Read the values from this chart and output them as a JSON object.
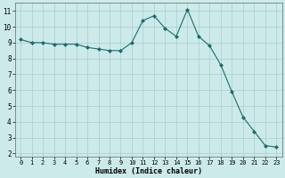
{
  "x": [
    0,
    1,
    2,
    3,
    4,
    5,
    6,
    7,
    8,
    9,
    10,
    11,
    12,
    13,
    14,
    15,
    16,
    17,
    18,
    19,
    20,
    21,
    22,
    23
  ],
  "y": [
    9.2,
    9.0,
    9.0,
    8.9,
    8.9,
    8.9,
    8.7,
    8.6,
    8.5,
    8.5,
    9.0,
    10.4,
    10.7,
    9.9,
    9.4,
    11.1,
    9.4,
    8.8,
    7.6,
    5.9,
    4.3,
    3.4,
    2.5,
    2.4
  ],
  "xlabel": "Humidex (Indice chaleur)",
  "bg_color": "#cceaea",
  "grid_color": "#aacccc",
  "line_color": "#1c6b6b",
  "marker_color": "#1c6b6b",
  "xlim": [
    -0.5,
    23.5
  ],
  "ylim": [
    1.8,
    11.5
  ],
  "yticks": [
    2,
    3,
    4,
    5,
    6,
    7,
    8,
    9,
    10,
    11
  ],
  "xticks": [
    0,
    1,
    2,
    3,
    4,
    5,
    6,
    7,
    8,
    9,
    10,
    11,
    12,
    13,
    14,
    15,
    16,
    17,
    18,
    19,
    20,
    21,
    22,
    23
  ],
  "figsize": [
    3.2,
    2.0
  ],
  "dpi": 100
}
